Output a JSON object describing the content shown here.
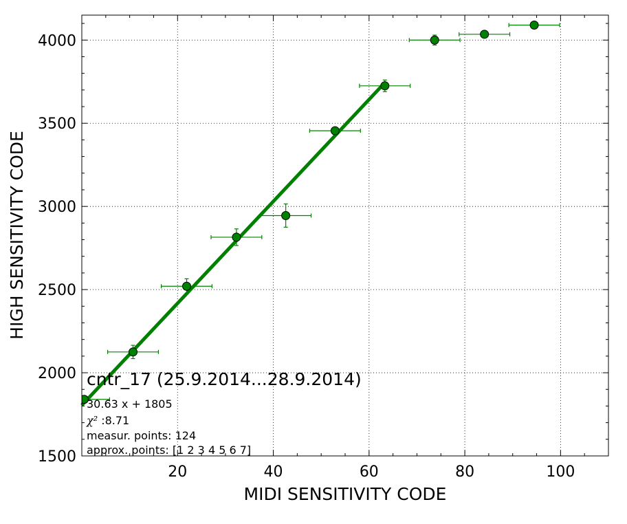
{
  "chart_data": {
    "type": "scatter",
    "xlabel": "MIDI SENSITIVITY CODE",
    "ylabel": "HIGH SENSITIVITY CODE",
    "xlim": [
      0,
      110
    ],
    "ylim": [
      1500,
      4150
    ],
    "xticks": [
      20,
      40,
      60,
      80,
      100
    ],
    "yticks": [
      1500,
      2000,
      2500,
      3000,
      3500,
      4000
    ],
    "grid": true,
    "colors": {
      "points": "#008000",
      "errorbars": "#008000",
      "fit": "#008000",
      "marker_edge": "#000000"
    },
    "series": [
      {
        "points": [
          {
            "x": 0.5,
            "y": 1840,
            "xerr": 5.3,
            "yerr": 0
          },
          {
            "x": 10.7,
            "y": 2125,
            "xerr": 5.3,
            "yerr": 40
          },
          {
            "x": 21.9,
            "y": 2520,
            "xerr": 5.3,
            "yerr": 45
          },
          {
            "x": 32.3,
            "y": 2815,
            "xerr": 5.3,
            "yerr": 50
          },
          {
            "x": 42.6,
            "y": 2945,
            "xerr": 5.3,
            "yerr": 70
          },
          {
            "x": 52.9,
            "y": 3455,
            "xerr": 5.3,
            "yerr": 20
          },
          {
            "x": 63.3,
            "y": 3725,
            "xerr": 5.3,
            "yerr": 35
          },
          {
            "x": 73.7,
            "y": 4000,
            "xerr": 5.3,
            "yerr": 30
          },
          {
            "x": 84.1,
            "y": 4035,
            "xerr": 5.3,
            "yerr": 15
          },
          {
            "x": 94.5,
            "y": 4090,
            "xerr": 5.3,
            "yerr": 15
          }
        ]
      }
    ],
    "fit": {
      "slope": 30.63,
      "intercept": 1805,
      "x_range": [
        0,
        63.3
      ]
    },
    "annotations": {
      "title": "cntr_17 (25.9.2014...28.9.2014)",
      "equation": "30.63 x + 1805",
      "chi_symbol": "χ²",
      "chi_value": " :8.71",
      "measur_points": "measur. points: 124",
      "approx_points": "approx. points: [1 2 3 4 5 6 7]"
    }
  }
}
